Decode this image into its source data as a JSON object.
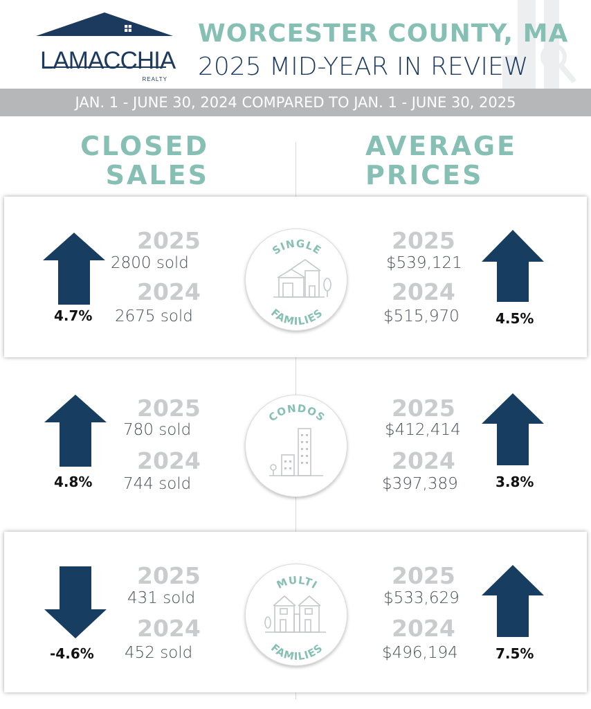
{
  "brand": {
    "name": "LAMACCHIA",
    "sub": "REALTY",
    "color": "#1b3a5e"
  },
  "header": {
    "title_line1": "WORCESTER COUNTY, MA",
    "title_line2": "2025 MID-YEAR IN REVIEW",
    "date_range": "JAN. 1 - JUNE 30, 2024 COMPARED TO JAN. 1 - JUNE 30, 2025"
  },
  "columns": {
    "left": {
      "line1": "CLOSED",
      "line2": "SALES"
    },
    "right": {
      "line1": "AVERAGE",
      "line2": "PRICES"
    }
  },
  "colors": {
    "accent": "#86bfb3",
    "arrow": "#173e60",
    "gray": "#b5b7b9"
  },
  "categories": [
    {
      "label_top": "SINGLE",
      "label_bottom": "FAMILIES",
      "icon": "single-family-house-icon",
      "sales": {
        "direction": "up",
        "change": "4.7%",
        "year_a": "2025",
        "value_a": "2800 sold",
        "year_b": "2024",
        "value_b": "2675 sold"
      },
      "prices": {
        "direction": "up",
        "change": "4.5%",
        "year_a": "2025",
        "value_a": "$539,121",
        "year_b": "2024",
        "value_b": "$515,970"
      }
    },
    {
      "label_top": "CONDOS",
      "label_bottom": "",
      "icon": "condo-building-icon",
      "sales": {
        "direction": "up",
        "change": "4.8%",
        "year_a": "2025",
        "value_a": "780 sold",
        "year_b": "2024",
        "value_b": "744 sold"
      },
      "prices": {
        "direction": "up",
        "change": "3.8%",
        "year_a": "2025",
        "value_a": "$412,414",
        "year_b": "2024",
        "value_b": "$397,389"
      }
    },
    {
      "label_top": "MULTI",
      "label_bottom": "FAMILIES",
      "icon": "multi-family-house-icon",
      "sales": {
        "direction": "down",
        "change": "-4.6%",
        "year_a": "2025",
        "value_a": "431 sold",
        "year_b": "2024",
        "value_b": "452 sold"
      },
      "prices": {
        "direction": "up",
        "change": "7.5%",
        "year_a": "2025",
        "value_a": "$533,629",
        "year_b": "2024",
        "value_b": "$496,194"
      }
    }
  ]
}
